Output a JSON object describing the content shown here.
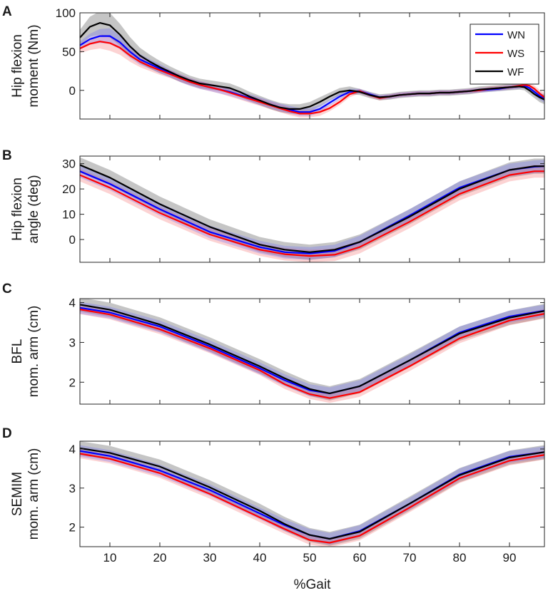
{
  "figure": {
    "xlabel": "%Gait"
  },
  "legend": {
    "entries": [
      {
        "label": "WN",
        "color": "#0000ff"
      },
      {
        "label": "WS",
        "color": "#ff0000"
      },
      {
        "label": "WF",
        "color": "#000000"
      }
    ]
  },
  "chart_data": [
    {
      "type": "line",
      "panel": "A",
      "ylabel": [
        "Hip flexion",
        "moment (Nm)"
      ],
      "xlim": [
        4,
        97
      ],
      "ylim": [
        -37,
        100
      ],
      "xticks": [
        10,
        20,
        30,
        40,
        50,
        60,
        70,
        80,
        90
      ],
      "yticks": [
        0,
        50,
        100
      ],
      "x": [
        4,
        6,
        8,
        10,
        12,
        14,
        16,
        18,
        20,
        22,
        24,
        26,
        28,
        30,
        32,
        34,
        36,
        38,
        40,
        42,
        44,
        46,
        48,
        50,
        52,
        54,
        56,
        58,
        60,
        62,
        64,
        66,
        68,
        70,
        72,
        74,
        76,
        78,
        80,
        82,
        84,
        86,
        88,
        90,
        92,
        93,
        94,
        95,
        96,
        97
      ],
      "series": [
        {
          "name": "WN",
          "color": "#0000ff",
          "sd": [
            5,
            7,
            9,
            10,
            9,
            8,
            7,
            6,
            6,
            5,
            5,
            5,
            5,
            5,
            5,
            5,
            5,
            5,
            5,
            5,
            5,
            5,
            5,
            5,
            5,
            4,
            4,
            4,
            3,
            3,
            3,
            3,
            3,
            3,
            3,
            3,
            3,
            3,
            3,
            3,
            3,
            3,
            3,
            3,
            3,
            3,
            4,
            4,
            5,
            5
          ],
          "values": [
            58,
            66,
            70,
            70,
            62,
            50,
            40,
            34,
            28,
            22,
            16,
            11,
            7,
            4,
            1,
            -2,
            -6,
            -10,
            -14,
            -18,
            -22,
            -25,
            -28,
            -28,
            -24,
            -16,
            -8,
            -2,
            -1,
            -5,
            -9,
            -8,
            -6,
            -5,
            -4,
            -4,
            -3,
            -3,
            -2,
            -1,
            0,
            1,
            2,
            4,
            5,
            6,
            3,
            -2,
            -7,
            -11
          ]
        },
        {
          "name": "WS",
          "color": "#ff0000",
          "sd": [
            6,
            8,
            9,
            10,
            9,
            8,
            7,
            6,
            6,
            5,
            5,
            5,
            5,
            5,
            5,
            5,
            5,
            5,
            5,
            5,
            5,
            5,
            5,
            5,
            5,
            4,
            4,
            4,
            3,
            3,
            3,
            3,
            3,
            3,
            3,
            3,
            3,
            3,
            3,
            3,
            3,
            3,
            3,
            3,
            3,
            3,
            4,
            4,
            5,
            5
          ],
          "values": [
            54,
            60,
            63,
            61,
            55,
            45,
            37,
            31,
            26,
            21,
            16,
            11,
            7,
            4,
            1,
            -3,
            -7,
            -11,
            -15,
            -19,
            -23,
            -27,
            -30,
            -30,
            -28,
            -23,
            -15,
            -5,
            -1,
            -6,
            -10,
            -8,
            -6,
            -5,
            -4,
            -4,
            -3,
            -3,
            -2,
            -1,
            0,
            2,
            3,
            4,
            6,
            7,
            6,
            2,
            -4,
            -9
          ]
        },
        {
          "name": "WF",
          "color": "#000000",
          "sd": [
            10,
            13,
            15,
            16,
            14,
            12,
            10,
            9,
            8,
            7,
            7,
            6,
            6,
            6,
            6,
            6,
            6,
            6,
            6,
            6,
            6,
            6,
            6,
            6,
            6,
            5,
            5,
            5,
            4,
            4,
            4,
            4,
            4,
            4,
            4,
            4,
            4,
            4,
            4,
            4,
            4,
            4,
            4,
            4,
            4,
            4,
            5,
            5,
            6,
            6
          ],
          "values": [
            68,
            82,
            87,
            84,
            72,
            57,
            45,
            37,
            30,
            24,
            18,
            13,
            9,
            7,
            5,
            3,
            -2,
            -8,
            -13,
            -18,
            -22,
            -24,
            -24,
            -21,
            -15,
            -8,
            -2,
            0,
            -2,
            -6,
            -9,
            -8,
            -6,
            -5,
            -4,
            -4,
            -3,
            -3,
            -2,
            -1,
            1,
            2,
            3,
            4,
            5,
            4,
            0,
            -5,
            -9,
            -12
          ]
        }
      ]
    },
    {
      "type": "line",
      "panel": "B",
      "ylabel": [
        "Hip flexion",
        "angle (deg)"
      ],
      "xlim": [
        4,
        97
      ],
      "ylim": [
        -9,
        33
      ],
      "xticks": [
        10,
        20,
        30,
        40,
        50,
        60,
        70,
        80,
        90
      ],
      "yticks": [
        0,
        10,
        20,
        30
      ],
      "x": [
        4,
        10,
        20,
        30,
        40,
        45,
        50,
        55,
        60,
        70,
        80,
        90,
        95,
        97
      ],
      "series": [
        {
          "name": "WN",
          "color": "#0000ff",
          "sd": 2.5,
          "values": [
            27,
            22,
            12,
            3,
            -3,
            -5,
            -5.5,
            -4.5,
            -1,
            9.5,
            20.5,
            27.5,
            28.8,
            29
          ]
        },
        {
          "name": "WS",
          "color": "#ff0000",
          "sd": 2.5,
          "values": [
            25.5,
            20.5,
            10.5,
            2,
            -4,
            -5.8,
            -6.5,
            -6,
            -3,
            7,
            18,
            25.5,
            27,
            27
          ]
        },
        {
          "name": "WF",
          "color": "#000000",
          "sd": 3.0,
          "values": [
            29.5,
            24.5,
            14,
            5,
            -2,
            -4,
            -5,
            -4,
            -1,
            9,
            20,
            27.5,
            29,
            29
          ]
        }
      ]
    },
    {
      "type": "line",
      "panel": "C",
      "ylabel": [
        "BFL",
        "mom. arm (cm)"
      ],
      "xlim": [
        4,
        97
      ],
      "ylim": [
        1.45,
        4.1
      ],
      "xticks": [
        10,
        20,
        30,
        40,
        50,
        60,
        70,
        80,
        90
      ],
      "yticks": [
        2,
        3,
        4
      ],
      "x": [
        4,
        10,
        20,
        30,
        40,
        45,
        50,
        54,
        60,
        70,
        80,
        90,
        97
      ],
      "series": [
        {
          "name": "WN",
          "color": "#0000ff",
          "sd": 0.15,
          "values": [
            3.87,
            3.75,
            3.4,
            2.9,
            2.35,
            2.05,
            1.8,
            1.72,
            1.9,
            2.55,
            3.25,
            3.65,
            3.8
          ]
        },
        {
          "name": "WS",
          "color": "#ff0000",
          "sd": 0.12,
          "values": [
            3.83,
            3.7,
            3.33,
            2.85,
            2.3,
            1.95,
            1.7,
            1.6,
            1.75,
            2.4,
            3.1,
            3.55,
            3.72
          ]
        },
        {
          "name": "WF",
          "color": "#000000",
          "sd": 0.18,
          "values": [
            3.95,
            3.82,
            3.45,
            2.95,
            2.4,
            2.1,
            1.83,
            1.72,
            1.9,
            2.55,
            3.22,
            3.62,
            3.79
          ]
        }
      ]
    },
    {
      "type": "line",
      "panel": "D",
      "ylabel": [
        "SEMIM",
        "mom. arm (cm)"
      ],
      "xlim": [
        4,
        97
      ],
      "ylim": [
        1.5,
        4.2
      ],
      "xticks": [
        10,
        20,
        30,
        40,
        50,
        60,
        70,
        80,
        90
      ],
      "yticks": [
        2,
        3,
        4
      ],
      "x": [
        4,
        10,
        20,
        30,
        40,
        45,
        50,
        54,
        60,
        70,
        80,
        90,
        97
      ],
      "series": [
        {
          "name": "WN",
          "color": "#0000ff",
          "sd": 0.15,
          "values": [
            3.95,
            3.82,
            3.45,
            2.95,
            2.35,
            2.05,
            1.8,
            1.7,
            1.9,
            2.6,
            3.35,
            3.8,
            3.92
          ]
        },
        {
          "name": "WS",
          "color": "#ff0000",
          "sd": 0.12,
          "values": [
            3.88,
            3.75,
            3.38,
            2.85,
            2.25,
            1.95,
            1.67,
            1.6,
            1.78,
            2.5,
            3.25,
            3.7,
            3.85
          ]
        },
        {
          "name": "WF",
          "color": "#000000",
          "sd": 0.18,
          "values": [
            4.02,
            3.9,
            3.55,
            3.02,
            2.42,
            2.08,
            1.8,
            1.7,
            1.88,
            2.6,
            3.33,
            3.78,
            3.92
          ]
        }
      ]
    }
  ]
}
